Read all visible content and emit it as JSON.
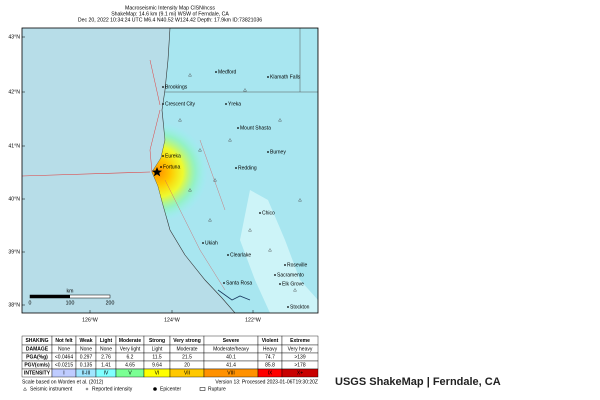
{
  "header": {
    "lines": [
      "Macroseismic Intensity Map CISN/ncss",
      "ShakeMap: 14.6 km (9.1 mi) WSW of Ferndale, CA",
      "Dec 20, 2022 10:34:24 UTC M6.4 N40.52 W124.42 Depth: 17.9km ID:73821036"
    ]
  },
  "map": {
    "lat_labels": [
      "43°N",
      "42°N",
      "41°N",
      "40°N",
      "39°N",
      "38°N"
    ],
    "lon_labels": [
      "126°W",
      "124°W",
      "122°W"
    ],
    "cities": [
      "Medford",
      "Klamath Falls",
      "Brookings",
      "Crescent City",
      "Yreka",
      "Mount Shasta",
      "Burney",
      "Eureka",
      "Fortuna",
      "Redding",
      "Chico",
      "Ukiah",
      "Clearlake",
      "Roseville",
      "Sacramento",
      "Elk Grove",
      "Santa Rosa",
      "Stockton"
    ],
    "scale": {
      "unit": "km",
      "ticks": [
        "0",
        "100",
        "200"
      ]
    }
  },
  "table": {
    "rows": [
      [
        "SHAKING",
        "Not felt",
        "Weak",
        "Light",
        "Moderate",
        "Strong",
        "Very strong",
        "Severe",
        "Violent",
        "Extreme"
      ],
      [
        "DAMAGE",
        "None",
        "None",
        "None",
        "Very light",
        "Light",
        "Moderate",
        "Moderate/heavy",
        "Heavy",
        "Very heavy"
      ],
      [
        "PGA(%g)",
        "<0.0464",
        "0.297",
        "2.76",
        "6.2",
        "11.5",
        "21.5",
        "40.1",
        "74.7",
        ">139"
      ],
      [
        "PGV(cm/s)",
        "<0.0215",
        "0.135",
        "1.41",
        "4.65",
        "9.64",
        "20",
        "41.4",
        "85.8",
        ">178"
      ],
      [
        "INTENSITY",
        "I",
        "II-III",
        "IV",
        "V",
        "VI",
        "VII",
        "VIII",
        "IX",
        "X+"
      ]
    ]
  },
  "footer": {
    "scale_note": "Scale based on Worden et al. (2012)",
    "version": "Version 13: Processed 2023-01-06T19:30:20Z",
    "legend": [
      "Seismic instrument",
      "Reported intensity",
      "Epicenter",
      "Rupture"
    ]
  },
  "caption": "USGS ShakeMap | Ferndale, CA"
}
